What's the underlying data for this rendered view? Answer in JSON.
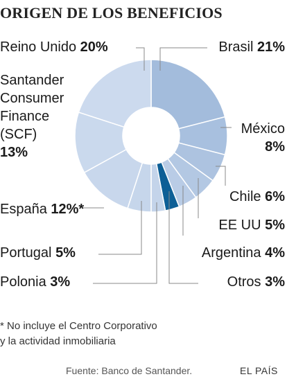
{
  "title": "ORIGEN DE LOS BENEFICIOS",
  "chart_data": {
    "type": "pie",
    "title": "ORIGEN DE LOS BENEFICIOS",
    "donut": true,
    "slices": [
      {
        "label": "Brasil",
        "value": 21,
        "value_label": "21%",
        "color": "#a3bcdc"
      },
      {
        "label": "México",
        "value": 8,
        "value_label": "8%",
        "color": "#a8c0df"
      },
      {
        "label": "Chile",
        "value": 6,
        "value_label": "6%",
        "color": "#adc3e0"
      },
      {
        "label": "EE UU",
        "value": 5,
        "value_label": "5%",
        "color": "#b3c8e3"
      },
      {
        "label": "Argentina",
        "value": 4,
        "value_label": "4%",
        "color": "#b9cce6"
      },
      {
        "label": "Otros",
        "value": 3,
        "value_label": "3%",
        "color": "#0d5f96"
      },
      {
        "label": "Polonia",
        "value": 3,
        "value_label": "3%",
        "color": "#c4d4ea"
      },
      {
        "label": "Portugal",
        "value": 5,
        "value_label": "5%",
        "color": "#c6d6eb"
      },
      {
        "label": "España",
        "value": 12,
        "value_label": "12%*",
        "color": "#c8d7ec"
      },
      {
        "label": "Santander Consumer Finance (SCF)",
        "label_lines": [
          "Santander",
          "Consumer",
          "Finance",
          "(SCF)"
        ],
        "value": 13,
        "value_label": "13%",
        "color": "#cad9ed"
      },
      {
        "label": "Reino Unido",
        "value": 20,
        "value_label": "20%",
        "color": "#ccdaee"
      }
    ]
  },
  "footnote": {
    "line1": "* No incluye el Centro Corporativo",
    "line2": "y la actividad inmobiliaria"
  },
  "source": "Fuente: Banco de Santander.",
  "brand": "EL PAÍS"
}
